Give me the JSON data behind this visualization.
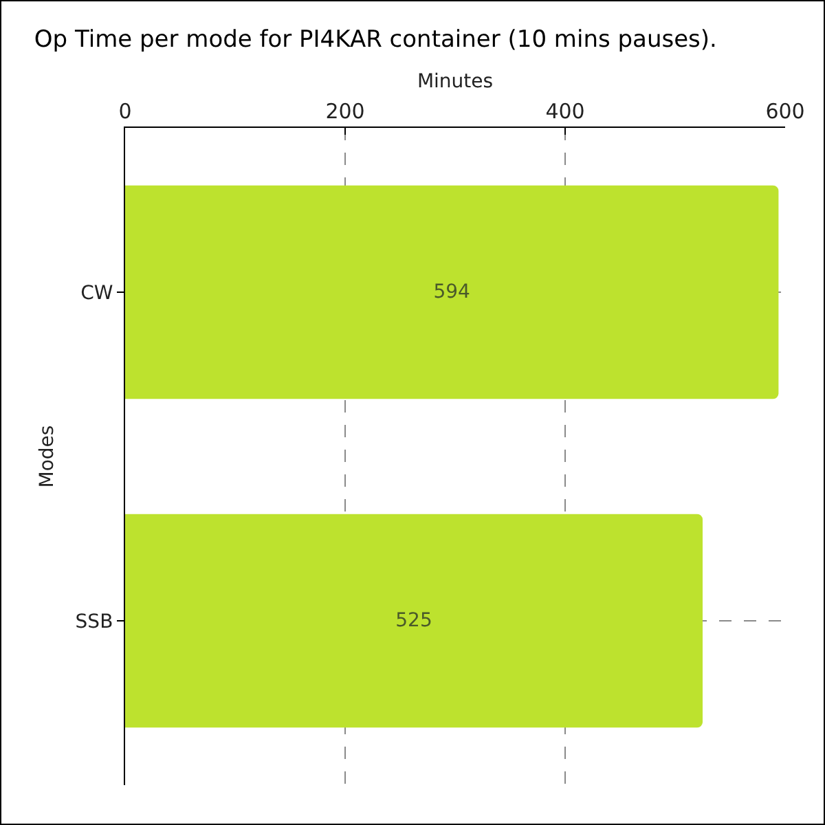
{
  "chart_data": {
    "type": "bar",
    "orientation": "horizontal",
    "title": "Op Time per mode for PI4KAR container (10 mins pauses).",
    "xlabel": "Minutes",
    "ylabel": "Modes",
    "categories": [
      "CW",
      "SSB"
    ],
    "values": [
      594,
      525
    ],
    "color": "#bde22e",
    "xlim": [
      0,
      600
    ],
    "xticks": [
      0,
      200,
      400,
      600
    ],
    "grid": true,
    "data_labels": true
  }
}
